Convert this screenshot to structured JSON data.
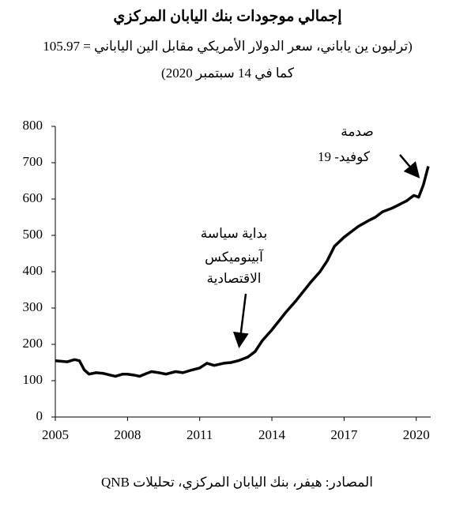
{
  "chart_data": {
    "type": "line",
    "title": "إجمالي موجودات بنك اليابان المركزي",
    "subtitle": [
      "(ترليون ين ياباني، سعر الدولار الأمريكي مقابل الين الياباني = 105.97",
      "كما في 14 سبتمبر 2020)"
    ],
    "source": "المصادر: هيفر، بنك اليابان المركزي، تحليلات QNB",
    "annotations": [
      [
        "صدمة",
        "كوفيد- 19"
      ],
      [
        "بداية سياسة",
        "آبينوميكس",
        "الاقتصادية"
      ]
    ],
    "x": [
      2005.0,
      2005.5,
      2005.8,
      2006.0,
      2006.2,
      2006.4,
      2006.7,
      2007.0,
      2007.3,
      2007.5,
      2007.8,
      2008.0,
      2008.3,
      2008.5,
      2008.8,
      2009.0,
      2009.3,
      2009.6,
      2010.0,
      2010.3,
      2010.6,
      2011.0,
      2011.3,
      2011.6,
      2012.0,
      2012.3,
      2012.6,
      2013.0,
      2013.3,
      2013.6,
      2014.0,
      2014.3,
      2014.6,
      2015.0,
      2015.3,
      2015.6,
      2016.0,
      2016.3,
      2016.6,
      2017.0,
      2017.3,
      2017.6,
      2018.0,
      2018.3,
      2018.6,
      2019.0,
      2019.3,
      2019.6,
      2019.9,
      2020.1,
      2020.3,
      2020.5
    ],
    "series": [
      {
        "color": "#000000",
        "values": [
          155,
          152,
          158,
          155,
          130,
          118,
          122,
          120,
          115,
          112,
          118,
          118,
          115,
          112,
          120,
          125,
          122,
          118,
          125,
          122,
          128,
          135,
          148,
          142,
          148,
          150,
          155,
          165,
          180,
          210,
          240,
          265,
          290,
          320,
          345,
          370,
          400,
          430,
          470,
          495,
          510,
          525,
          540,
          550,
          565,
          575,
          585,
          595,
          610,
          605,
          640,
          690
        ]
      }
    ],
    "xlim": [
      2005,
      2020.6
    ],
    "xticks": [
      2005,
      2008,
      2011,
      2014,
      2017,
      2020
    ],
    "ylim": [
      0,
      800
    ],
    "yticks": [
      0,
      100,
      200,
      300,
      400,
      500,
      600,
      700,
      800
    ]
  }
}
